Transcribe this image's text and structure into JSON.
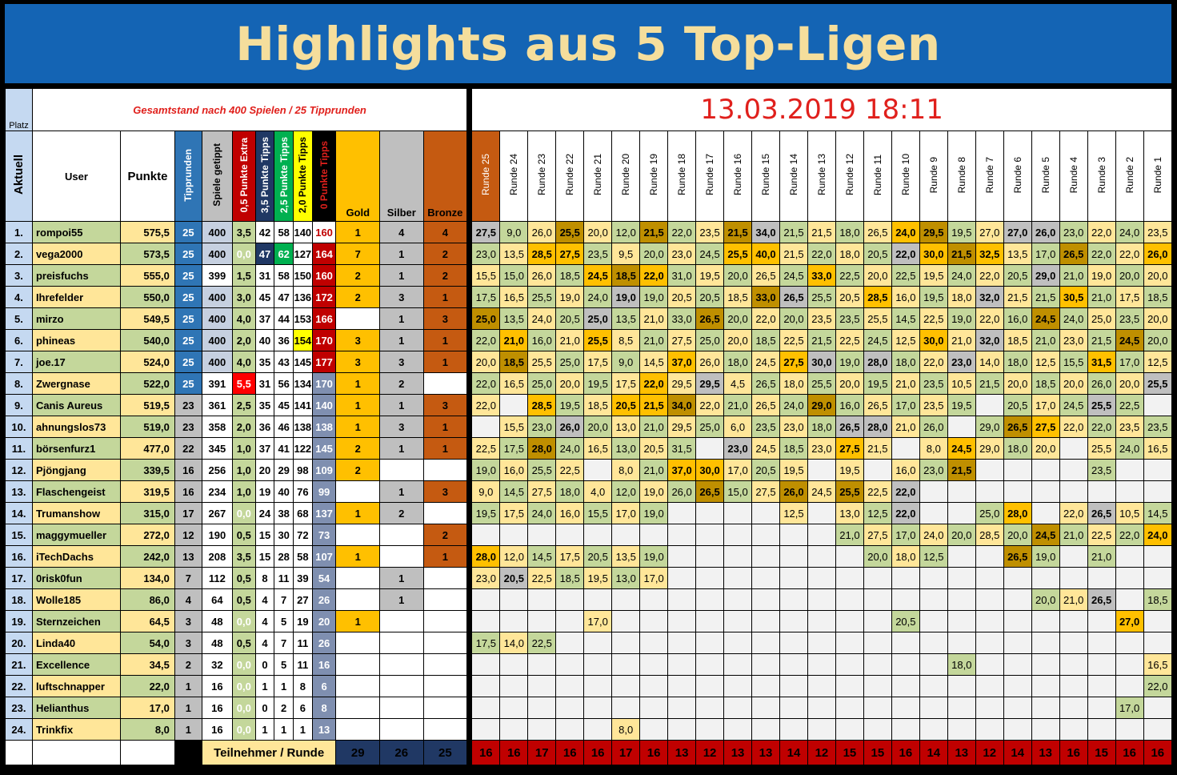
{
  "title": "Highlights aus 5 Top-Ligen",
  "subtitle": "Gesamtstand nach 400 Spielen / 25 Tipprunden",
  "timestamp": "13.03.2019 18:11",
  "headers": {
    "platz": "Platz",
    "aktuell": "Aktuell",
    "user": "User",
    "punkte": "Punkte",
    "tipprunden": "Tipprunden",
    "spiele": "Spiele getippt",
    "extra05": "0,5 Punkte Extra",
    "tipps35": "3,5 Punkte Tipps",
    "tipps25": "2,5 Punkte Tipps",
    "tipps20": "2,0 Punkte Tipps",
    "tipps0": "0 Punkte Tipps",
    "gold": "Gold",
    "silber": "Silber",
    "bronze": "Bronze"
  },
  "colors": {
    "title_bg": "#1464B4",
    "title_text": "#F5DE9C",
    "timestamp": "#E0201C",
    "gold": "#FFC000",
    "silver": "#BFBFBF",
    "bronze": "#C55A11"
  },
  "rounds": [
    "Runde 25",
    "Runde 24",
    "Runde 23",
    "Runde 22",
    "Runde 21",
    "Runde 20",
    "Runde 19",
    "Runde 18",
    "Runde 17",
    "Runde 16",
    "Runde 15",
    "Runde 14",
    "Runde 13",
    "Runde 12",
    "Runde 11",
    "Runde 10",
    "Runde 9",
    "Runde 8",
    "Runde 7",
    "Runde 6",
    "Runde 5",
    "Runde 4",
    "Runde 3",
    "Runde 2",
    "Runde 1"
  ],
  "rows": [
    {
      "rank": "1.",
      "user": "rompoi55",
      "points": "575,5",
      "tr": "25",
      "sp": "400",
      "x05": "3,5",
      "t35": "42",
      "t25": "58",
      "t20": "140",
      "t0": "160",
      "gold": "1",
      "silver": "4",
      "bronze": "4",
      "r": [
        "27,5",
        "9,0",
        "26,0",
        "25,5",
        "20,0",
        "12,0",
        "21,5",
        "22,0",
        "23,5",
        "21,5",
        "34,0",
        "21,5",
        "21,5",
        "18,0",
        "26,5",
        "24,0",
        "29,5",
        "19,5",
        "27,0",
        "27,0",
        "26,0",
        "23,0",
        "22,0",
        "24,0",
        "23,5"
      ],
      "hl": {
        "0": "gray",
        "3": "bronze",
        "6": "bronze",
        "9": "bronze",
        "10": "gray",
        "15": "gold",
        "16": "bronze",
        "19": "gray",
        "20": "gray"
      }
    },
    {
      "rank": "2.",
      "user": "vega2000",
      "points": "573,5",
      "tr": "25",
      "sp": "400",
      "x05": "0,0",
      "t35": "47",
      "t25": "62",
      "t20": "127",
      "t0": "164",
      "gold": "7",
      "silver": "1",
      "bronze": "2",
      "r": [
        "23,0",
        "13,5",
        "28,5",
        "27,5",
        "23,5",
        "9,5",
        "20,0",
        "23,0",
        "24,5",
        "25,5",
        "40,0",
        "21,5",
        "22,0",
        "18,0",
        "20,5",
        "22,0",
        "30,0",
        "21,5",
        "32,5",
        "13,5",
        "17,0",
        "26,5",
        "22,0",
        "22,0",
        "26,0"
      ],
      "hl": {
        "2": "gold",
        "3": "gold",
        "9": "gold",
        "10": "gold",
        "15": "gray",
        "16": "gold",
        "17": "bronze",
        "18": "gold",
        "21": "bronze",
        "24": "gold"
      }
    },
    {
      "rank": "3.",
      "user": "preisfuchs",
      "points": "555,0",
      "tr": "25",
      "sp": "399",
      "x05": "1,5",
      "t35": "31",
      "t25": "58",
      "t20": "150",
      "t0": "160",
      "gold": "2",
      "silver": "1",
      "bronze": "2",
      "r": [
        "15,5",
        "15,0",
        "26,0",
        "18,5",
        "24,5",
        "18,5",
        "22,0",
        "31,0",
        "19,5",
        "20,0",
        "26,5",
        "24,5",
        "33,0",
        "22,5",
        "20,0",
        "22,5",
        "19,5",
        "24,0",
        "22,0",
        "20,5",
        "29,0",
        "21,0",
        "19,0",
        "20,0",
        "20,0"
      ],
      "hl": {
        "4": "gold",
        "5": "bronze",
        "6": "gold",
        "12": "gold",
        "20": "gray"
      }
    },
    {
      "rank": "4.",
      "user": "Ihrefelder",
      "points": "550,0",
      "tr": "25",
      "sp": "400",
      "x05": "3,0",
      "t35": "45",
      "t25": "47",
      "t20": "136",
      "t0": "172",
      "gold": "2",
      "silver": "3",
      "bronze": "1",
      "r": [
        "17,5",
        "16,5",
        "25,5",
        "19,0",
        "24,0",
        "19,0",
        "19,0",
        "20,5",
        "20,5",
        "18,5",
        "33,0",
        "26,5",
        "25,5",
        "20,5",
        "28,5",
        "16,0",
        "19,5",
        "18,0",
        "32,0",
        "21,5",
        "21,5",
        "30,5",
        "21,0",
        "17,5",
        "18,5"
      ],
      "hl": {
        "5": "gray",
        "10": "bronze",
        "11": "gray",
        "14": "gold",
        "18": "gray",
        "21": "gold"
      }
    },
    {
      "rank": "5.",
      "user": "mirzo",
      "points": "549,5",
      "tr": "25",
      "sp": "400",
      "x05": "4,0",
      "t35": "37",
      "t25": "44",
      "t20": "153",
      "t0": "166",
      "gold": "",
      "silver": "1",
      "bronze": "3",
      "r": [
        "25,0",
        "13,5",
        "24,0",
        "20,5",
        "25,0",
        "13,5",
        "21,0",
        "33,0",
        "26,5",
        "20,0",
        "22,0",
        "20,0",
        "23,5",
        "23,5",
        "25,5",
        "14,5",
        "22,5",
        "19,0",
        "22,0",
        "16,0",
        "24,5",
        "24,0",
        "25,0",
        "23,5",
        "20,0"
      ],
      "hl": {
        "0": "bronze",
        "4": "gray",
        "8": "bronze",
        "20": "bronze"
      }
    },
    {
      "rank": "6.",
      "user": "phineas",
      "points": "540,0",
      "tr": "25",
      "sp": "400",
      "x05": "2,0",
      "t35": "40",
      "t25": "36",
      "t20": "154",
      "t0": "170",
      "gold": "3",
      "silver": "1",
      "bronze": "1",
      "r": [
        "22,0",
        "21,0",
        "16,0",
        "21,0",
        "25,5",
        "8,5",
        "21,0",
        "27,5",
        "25,0",
        "20,0",
        "18,5",
        "22,5",
        "21,5",
        "22,5",
        "24,5",
        "12,5",
        "30,0",
        "21,0",
        "32,0",
        "18,5",
        "21,0",
        "23,0",
        "21,5",
        "24,5",
        "20,0"
      ],
      "hl": {
        "1": "gold",
        "4": "gold",
        "16": "gold",
        "18": "gray",
        "23": "bronze"
      }
    },
    {
      "rank": "7.",
      "user": "joe.17",
      "points": "524,0",
      "tr": "25",
      "sp": "400",
      "x05": "4,0",
      "t35": "35",
      "t25": "43",
      "t20": "145",
      "t0": "177",
      "gold": "3",
      "silver": "3",
      "bronze": "1",
      "r": [
        "20,0",
        "18,5",
        "25,5",
        "25,0",
        "17,5",
        "9,0",
        "14,5",
        "37,0",
        "26,0",
        "18,0",
        "24,5",
        "27,5",
        "30,0",
        "19,0",
        "28,0",
        "18,0",
        "22,0",
        "23,0",
        "14,0",
        "18,0",
        "12,5",
        "15,5",
        "31,5",
        "17,0",
        "12,5"
      ],
      "hl": {
        "1": "bronze",
        "7": "gold",
        "11": "gold",
        "12": "gray",
        "14": "gray",
        "17": "gray",
        "22": "gold"
      }
    },
    {
      "rank": "8.",
      "user": "Zwergnase",
      "points": "522,0",
      "tr": "25",
      "sp": "391",
      "x05": "5,5",
      "t35": "31",
      "t25": "56",
      "t20": "134",
      "t0": "170",
      "gold": "1",
      "silver": "2",
      "bronze": "",
      "r": [
        "22,0",
        "16,5",
        "25,0",
        "20,0",
        "19,5",
        "17,5",
        "22,0",
        "29,5",
        "29,5",
        "4,5",
        "26,5",
        "18,0",
        "25,5",
        "20,0",
        "19,5",
        "21,0",
        "23,5",
        "10,5",
        "21,5",
        "20,0",
        "18,5",
        "20,0",
        "26,0",
        "20,0",
        "25,5"
      ],
      "hl": {
        "6": "gold",
        "8": "gray",
        "24": "gray"
      }
    },
    {
      "rank": "9.",
      "user": "Canis Aureus",
      "points": "519,5",
      "tr": "23",
      "sp": "361",
      "x05": "2,5",
      "t35": "35",
      "t25": "45",
      "t20": "141",
      "t0": "140",
      "gold": "1",
      "silver": "1",
      "bronze": "3",
      "r": [
        "22,0",
        "",
        "28,5",
        "19,5",
        "18,5",
        "20,5",
        "21,5",
        "34,0",
        "22,0",
        "21,0",
        "26,5",
        "24,0",
        "29,0",
        "16,0",
        "26,5",
        "17,0",
        "23,5",
        "19,5",
        "",
        "20,5",
        "17,0",
        "24,5",
        "25,5",
        "22,5",
        ""
      ],
      "hl": {
        "2": "gold",
        "5": "gold",
        "6": "gold",
        "7": "bronze",
        "12": "bronze",
        "22": "gray"
      }
    },
    {
      "rank": "10.",
      "user": "ahnungslos73",
      "points": "519,0",
      "tr": "23",
      "sp": "358",
      "x05": "2,0",
      "t35": "36",
      "t25": "46",
      "t20": "138",
      "t0": "138",
      "gold": "1",
      "silver": "3",
      "bronze": "1",
      "r": [
        "",
        "15,5",
        "23,0",
        "26,0",
        "20,0",
        "13,0",
        "21,0",
        "29,5",
        "25,0",
        "6,0",
        "23,5",
        "23,0",
        "18,0",
        "26,5",
        "28,0",
        "21,0",
        "26,0",
        "",
        "29,0",
        "26,5",
        "27,5",
        "22,0",
        "22,0",
        "23,5",
        "23,5"
      ],
      "hl": {
        "3": "gray",
        "13": "gray",
        "14": "gray",
        "19": "bronze",
        "20": "gold"
      }
    },
    {
      "rank": "11.",
      "user": "börsenfurz1",
      "points": "477,0",
      "tr": "22",
      "sp": "345",
      "x05": "1,0",
      "t35": "37",
      "t25": "41",
      "t20": "122",
      "t0": "145",
      "gold": "2",
      "silver": "1",
      "bronze": "1",
      "r": [
        "22,5",
        "17,5",
        "28,0",
        "24,0",
        "16,5",
        "13,0",
        "20,5",
        "31,5",
        "",
        "23,0",
        "24,5",
        "18,5",
        "23,0",
        "27,5",
        "21,5",
        "",
        "8,0",
        "24,5",
        "29,0",
        "18,0",
        "20,0",
        "",
        "25,5",
        "24,0",
        "16,5"
      ],
      "hl": {
        "2": "bronze",
        "9": "gray",
        "13": "gold",
        "17": "gold"
      }
    },
    {
      "rank": "12.",
      "user": "Pjöngjang",
      "points": "339,5",
      "tr": "16",
      "sp": "256",
      "x05": "1,0",
      "t35": "20",
      "t25": "29",
      "t20": "98",
      "t0": "109",
      "gold": "2",
      "silver": "",
      "bronze": "",
      "r": [
        "19,0",
        "16,0",
        "25,5",
        "22,5",
        "",
        "8,0",
        "21,0",
        "37,0",
        "30,0",
        "17,0",
        "20,5",
        "19,5",
        "",
        "19,5",
        "",
        "16,0",
        "23,0",
        "21,5",
        "",
        "",
        "",
        "",
        "23,5",
        "",
        ""
      ],
      "hl": {
        "7": "gold",
        "8": "gold",
        "17": "bronze"
      }
    },
    {
      "rank": "13.",
      "user": "Flaschengeist",
      "points": "319,5",
      "tr": "16",
      "sp": "234",
      "x05": "1,0",
      "t35": "19",
      "t25": "40",
      "t20": "76",
      "t0": "99",
      "gold": "",
      "silver": "1",
      "bronze": "3",
      "r": [
        "9,0",
        "14,5",
        "27,5",
        "18,0",
        "4,0",
        "12,0",
        "19,0",
        "26,0",
        "26,5",
        "15,0",
        "27,5",
        "26,0",
        "24,5",
        "25,5",
        "22,5",
        "22,0",
        "",
        "",
        "",
        "",
        "",
        "",
        "",
        "",
        ""
      ],
      "hl": {
        "8": "bronze",
        "11": "bronze",
        "13": "bronze",
        "15": "gray"
      }
    },
    {
      "rank": "14.",
      "user": "Trumanshow",
      "points": "315,0",
      "tr": "17",
      "sp": "267",
      "x05": "0,0",
      "t35": "24",
      "t25": "38",
      "t20": "68",
      "t0": "137",
      "gold": "1",
      "silver": "2",
      "bronze": "",
      "r": [
        "19,5",
        "17,5",
        "24,0",
        "16,0",
        "15,5",
        "17,0",
        "19,0",
        "",
        "",
        "",
        "",
        "12,5",
        "",
        "13,0",
        "12,5",
        "22,0",
        "",
        "",
        "25,0",
        "28,0",
        "",
        "22,0",
        "26,5",
        "10,5",
        "14,5"
      ],
      "hl": {
        "15": "gray",
        "19": "gold",
        "22": "gray"
      }
    },
    {
      "rank": "15.",
      "user": "maggymueller",
      "points": "272,0",
      "tr": "12",
      "sp": "190",
      "x05": "0,5",
      "t35": "15",
      "t25": "30",
      "t20": "72",
      "t0": "73",
      "gold": "",
      "silver": "",
      "bronze": "2",
      "r": [
        "",
        "",
        "",
        "",
        "",
        "",
        "",
        "",
        "",
        "",
        "",
        "",
        "",
        "21,0",
        "27,5",
        "17,0",
        "24,0",
        "20,0",
        "28,5",
        "20,0",
        "24,5",
        "21,0",
        "22,5",
        "22,0",
        "24,0"
      ],
      "hl": {
        "20": "bronze",
        "24": "gold"
      }
    },
    {
      "rank": "16.",
      "user": "iTechDachs",
      "points": "242,0",
      "tr": "13",
      "sp": "208",
      "x05": "3,5",
      "t35": "15",
      "t25": "28",
      "t20": "58",
      "t0": "107",
      "gold": "1",
      "silver": "",
      "bronze": "1",
      "r": [
        "28,0",
        "12,0",
        "14,5",
        "17,5",
        "20,5",
        "13,5",
        "19,0",
        "",
        "",
        "",
        "",
        "",
        "",
        "",
        "20,0",
        "18,0",
        "12,5",
        "",
        "",
        "26,5",
        "19,0",
        "",
        "21,0",
        "",
        ""
      ],
      "hl": {
        "0": "gold",
        "19": "bronze"
      }
    },
    {
      "rank": "17.",
      "user": "0risk0fun",
      "points": "134,0",
      "tr": "7",
      "sp": "112",
      "x05": "0,5",
      "t35": "8",
      "t25": "11",
      "t20": "39",
      "t0": "54",
      "gold": "",
      "silver": "1",
      "bronze": "",
      "r": [
        "23,0",
        "20,5",
        "22,5",
        "18,5",
        "19,5",
        "13,0",
        "17,0",
        "",
        "",
        "",
        "",
        "",
        "",
        "",
        "",
        "",
        "",
        "",
        "",
        "",
        "",
        "",
        "",
        "",
        ""
      ],
      "hl": {
        "1": "gray"
      }
    },
    {
      "rank": "18.",
      "user": "Wolle185",
      "points": "86,0",
      "tr": "4",
      "sp": "64",
      "x05": "0,5",
      "t35": "4",
      "t25": "7",
      "t20": "27",
      "t0": "26",
      "gold": "",
      "silver": "1",
      "bronze": "",
      "r": [
        "",
        "",
        "",
        "",
        "",
        "",
        "",
        "",
        "",
        "",
        "",
        "",
        "",
        "",
        "",
        "",
        "",
        "",
        "",
        "",
        "20,0",
        "21,0",
        "26,5",
        "",
        "18,5"
      ],
      "hl": {
        "22": "gray"
      }
    },
    {
      "rank": "19.",
      "user": "Sternzeichen",
      "points": "64,5",
      "tr": "3",
      "sp": "48",
      "x05": "0,0",
      "t35": "4",
      "t25": "5",
      "t20": "19",
      "t0": "20",
      "gold": "1",
      "silver": "",
      "bronze": "",
      "r": [
        "",
        "",
        "",
        "",
        "17,0",
        "",
        "",
        "",
        "",
        "",
        "",
        "",
        "",
        "",
        "",
        "20,5",
        "",
        "",
        "",
        "",
        "",
        "",
        "",
        "27,0",
        ""
      ],
      "hl": {
        "23": "gold"
      }
    },
    {
      "rank": "20.",
      "user": "Linda40",
      "points": "54,0",
      "tr": "3",
      "sp": "48",
      "x05": "0,5",
      "t35": "4",
      "t25": "7",
      "t20": "11",
      "t0": "26",
      "gold": "",
      "silver": "",
      "bronze": "",
      "r": [
        "17,5",
        "14,0",
        "22,5",
        "",
        "",
        "",
        "",
        "",
        "",
        "",
        "",
        "",
        "",
        "",
        "",
        "",
        "",
        "",
        "",
        "",
        "",
        "",
        "",
        "",
        ""
      ],
      "hl": {}
    },
    {
      "rank": "21.",
      "user": "Excellence",
      "points": "34,5",
      "tr": "2",
      "sp": "32",
      "x05": "0,0",
      "t35": "0",
      "t25": "5",
      "t20": "11",
      "t0": "16",
      "gold": "",
      "silver": "",
      "bronze": "",
      "r": [
        "",
        "",
        "",
        "",
        "",
        "",
        "",
        "",
        "",
        "",
        "",
        "",
        "",
        "",
        "",
        "",
        "",
        "18,0",
        "",
        "",
        "",
        "",
        "",
        "",
        "16,5"
      ],
      "hl": {}
    },
    {
      "rank": "22.",
      "user": "luftschnapper",
      "points": "22,0",
      "tr": "1",
      "sp": "16",
      "x05": "0,0",
      "t35": "1",
      "t25": "1",
      "t20": "8",
      "t0": "6",
      "gold": "",
      "silver": "",
      "bronze": "",
      "r": [
        "",
        "",
        "",
        "",
        "",
        "",
        "",
        "",
        "",
        "",
        "",
        "",
        "",
        "",
        "",
        "",
        "",
        "",
        "",
        "",
        "",
        "",
        "",
        "",
        "22,0"
      ],
      "hl": {}
    },
    {
      "rank": "23.",
      "user": "Helianthus",
      "points": "17,0",
      "tr": "1",
      "sp": "16",
      "x05": "0,0",
      "t35": "0",
      "t25": "2",
      "t20": "6",
      "t0": "8",
      "gold": "",
      "silver": "",
      "bronze": "",
      "r": [
        "",
        "",
        "",
        "",
        "",
        "",
        "",
        "",
        "",
        "",
        "",
        "",
        "",
        "",
        "",
        "",
        "",
        "",
        "",
        "",
        "",
        "",
        "",
        "17,0",
        ""
      ],
      "hl": {}
    },
    {
      "rank": "24.",
      "user": "Trinkfix",
      "points": "8,0",
      "tr": "1",
      "sp": "16",
      "x05": "0,0",
      "t35": "1",
      "t25": "1",
      "t20": "1",
      "t0": "13",
      "gold": "",
      "silver": "",
      "bronze": "",
      "r": [
        "",
        "",
        "",
        "",
        "",
        "8,0",
        "",
        "",
        "",
        "",
        "",
        "",
        "",
        "",
        "",
        "",
        "",
        "",
        "",
        "",
        "",
        "",
        "",
        "",
        ""
      ],
      "hl": {}
    }
  ],
  "footer": {
    "label": "Teilnehmer / Runde",
    "gold_total": "29",
    "silver_total": "26",
    "bronze_total": "25",
    "per_round": [
      "16",
      "16",
      "17",
      "16",
      "16",
      "17",
      "16",
      "13",
      "12",
      "13",
      "13",
      "14",
      "12",
      "15",
      "15",
      "16",
      "14",
      "13",
      "12",
      "14",
      "13",
      "16",
      "15",
      "16",
      "16"
    ]
  }
}
